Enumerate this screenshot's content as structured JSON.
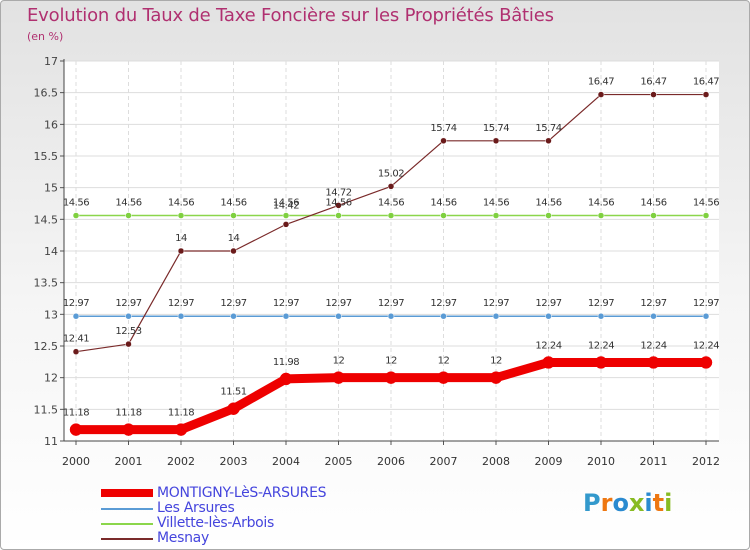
{
  "chart_data": {
    "type": "line",
    "title": "Evolution du Taux de Taxe Foncière sur les Propriétés Bâties",
    "ylabel": "(en %)",
    "xlabel": "",
    "x": [
      "2000",
      "2001",
      "2002",
      "2003",
      "2004",
      "2005",
      "2006",
      "2007",
      "2008",
      "2009",
      "2010",
      "2011",
      "2012"
    ],
    "ylim": [
      11,
      17
    ],
    "yticks": [
      "11",
      "11.5",
      "12",
      "12.5",
      "13",
      "13.5",
      "14",
      "14.5",
      "15",
      "15.5",
      "16",
      "16.5",
      "17"
    ],
    "grid": true,
    "series": [
      {
        "name": "MONTIGNY-LèS-ARSURES",
        "color": "#ee0000",
        "values": [
          11.18,
          11.18,
          11.18,
          11.51,
          11.98,
          12,
          12,
          12,
          12,
          12.24,
          12.24,
          12.24,
          12.24
        ],
        "labels": [
          "11.18",
          "11.18",
          "11.18",
          "11.51",
          "11.98",
          "12",
          "12",
          "12",
          "12",
          "12.24",
          "12.24",
          "12.24",
          "12.24"
        ]
      },
      {
        "name": "Les Arsures",
        "color": "#5a9bd5",
        "values": [
          12.97,
          12.97,
          12.97,
          12.97,
          12.97,
          12.97,
          12.97,
          12.97,
          12.97,
          12.97,
          12.97,
          12.97,
          12.97
        ],
        "labels": [
          "12.97",
          "12.97",
          "12.97",
          "12.97",
          "12.97",
          "12.97",
          "12.97",
          "12.97",
          "12.97",
          "12.97",
          "12.97",
          "12.97",
          "12.97"
        ]
      },
      {
        "name": "Villette-lès-Arbois",
        "color": "#8bd64b",
        "values": [
          14.56,
          14.56,
          14.56,
          14.56,
          14.56,
          14.56,
          14.56,
          14.56,
          14.56,
          14.56,
          14.56,
          14.56,
          14.56
        ],
        "labels": [
          "14.56",
          "14.56",
          "14.56",
          "14.56",
          "14.56",
          "14.56",
          "14.56",
          "14.56",
          "14.56",
          "14.56",
          "14.56",
          "14.56",
          "14.56"
        ]
      },
      {
        "name": "Mesnay",
        "color": "#7a2a2a",
        "values": [
          12.41,
          12.53,
          14,
          14,
          14.42,
          14.72,
          15.02,
          15.74,
          15.74,
          15.74,
          16.47,
          16.47,
          16.47
        ],
        "labels": [
          "12.41",
          "12.53",
          "14",
          "14",
          "14.42",
          "14.72",
          "15.02",
          "15.74",
          "15.74",
          "15.74",
          "16.47",
          "16.47",
          "16.47"
        ]
      }
    ]
  },
  "logo": {
    "text": "Proxiti"
  }
}
